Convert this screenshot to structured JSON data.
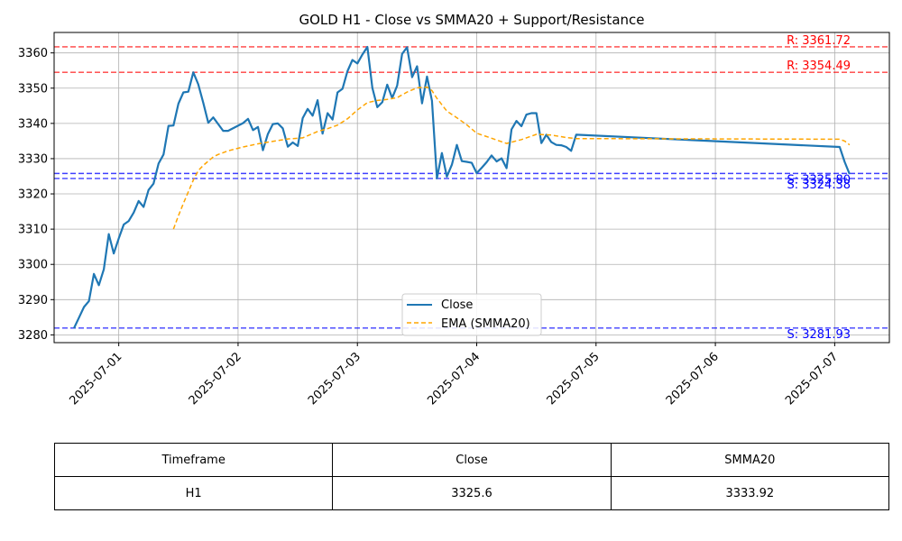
{
  "chart_data": {
    "type": "line",
    "title": "GOLD H1 - Close vs SMMA20 + Support/Resistance",
    "xlabel": "",
    "ylabel": "",
    "x_axis": "datetime",
    "xlim": [
      "2025-06-30T11:00",
      "2025-07-07T11:00"
    ],
    "ylim": [
      3277.8,
      3365.8
    ],
    "y_ticks": [
      3280,
      3290,
      3300,
      3310,
      3320,
      3330,
      3340,
      3350,
      3360
    ],
    "x_ticks": [
      "2025-07-01",
      "2025-07-02",
      "2025-07-03",
      "2025-07-04",
      "2025-07-05",
      "2025-07-06",
      "2025-07-07"
    ],
    "grid": true,
    "legend_position": "lower-center",
    "series": [
      {
        "name": "Close",
        "style": "solid",
        "color": "#1f77b4",
        "points": [
          [
            "2025-06-30T15:00",
            3281.9
          ],
          [
            "2025-06-30T16:00",
            3284.9
          ],
          [
            "2025-06-30T17:00",
            3287.9
          ],
          [
            "2025-06-30T18:00",
            3289.6
          ],
          [
            "2025-06-30T19:00",
            3297.3
          ],
          [
            "2025-06-30T20:00",
            3294.1
          ],
          [
            "2025-06-30T21:00",
            3298.6
          ],
          [
            "2025-06-30T22:00",
            3308.6
          ],
          [
            "2025-06-30T23:00",
            3303.1
          ],
          [
            "2025-07-01T00:00",
            3307.4
          ],
          [
            "2025-07-01T01:00",
            3311.3
          ],
          [
            "2025-07-01T02:00",
            3312.3
          ],
          [
            "2025-07-01T03:00",
            3314.7
          ],
          [
            "2025-07-01T04:00",
            3318.0
          ],
          [
            "2025-07-01T05:00",
            3316.3
          ],
          [
            "2025-07-01T06:00",
            3321.1
          ],
          [
            "2025-07-01T07:00",
            3322.9
          ],
          [
            "2025-07-01T08:00",
            3328.6
          ],
          [
            "2025-07-01T09:00",
            3331.2
          ],
          [
            "2025-07-01T10:00",
            3339.3
          ],
          [
            "2025-07-01T11:00",
            3339.4
          ],
          [
            "2025-07-01T12:00",
            3345.6
          ],
          [
            "2025-07-01T13:00",
            3348.8
          ],
          [
            "2025-07-01T14:00",
            3349.0
          ],
          [
            "2025-07-01T15:00",
            3354.5
          ],
          [
            "2025-07-01T16:00",
            3351.1
          ],
          [
            "2025-07-01T17:00",
            3345.8
          ],
          [
            "2025-07-01T18:00",
            3340.2
          ],
          [
            "2025-07-01T19:00",
            3341.7
          ],
          [
            "2025-07-01T20:00",
            3339.8
          ],
          [
            "2025-07-01T21:00",
            3337.9
          ],
          [
            "2025-07-01T22:00",
            3337.9
          ],
          [
            "2025-07-02T01:00",
            3340.1
          ],
          [
            "2025-07-02T02:00",
            3341.3
          ],
          [
            "2025-07-02T03:00",
            3338.1
          ],
          [
            "2025-07-02T04:00",
            3339.0
          ],
          [
            "2025-07-02T05:00",
            3332.4
          ],
          [
            "2025-07-02T06:00",
            3337.0
          ],
          [
            "2025-07-02T07:00",
            3339.8
          ],
          [
            "2025-07-02T08:00",
            3340.0
          ],
          [
            "2025-07-02T09:00",
            3338.6
          ],
          [
            "2025-07-02T10:00",
            3333.4
          ],
          [
            "2025-07-02T11:00",
            3334.6
          ],
          [
            "2025-07-02T12:00",
            3333.6
          ],
          [
            "2025-07-02T13:00",
            3341.5
          ],
          [
            "2025-07-02T14:00",
            3344.1
          ],
          [
            "2025-07-02T15:00",
            3342.2
          ],
          [
            "2025-07-02T16:00",
            3346.6
          ],
          [
            "2025-07-02T17:00",
            3337.1
          ],
          [
            "2025-07-02T18:00",
            3342.9
          ],
          [
            "2025-07-02T19:00",
            3341.1
          ],
          [
            "2025-07-02T20:00",
            3348.8
          ],
          [
            "2025-07-02T21:00",
            3349.8
          ],
          [
            "2025-07-02T22:00",
            3354.8
          ],
          [
            "2025-07-02T23:00",
            3358.0
          ],
          [
            "2025-07-03T00:00",
            3357.0
          ],
          [
            "2025-07-03T01:00",
            3359.5
          ],
          [
            "2025-07-03T02:00",
            3361.7
          ],
          [
            "2025-07-03T03:00",
            3350.1
          ],
          [
            "2025-07-03T04:00",
            3344.6
          ],
          [
            "2025-07-03T05:00",
            3346.0
          ],
          [
            "2025-07-03T06:00",
            3351.0
          ],
          [
            "2025-07-03T07:00",
            3347.2
          ],
          [
            "2025-07-03T08:00",
            3350.7
          ],
          [
            "2025-07-03T09:00",
            3359.7
          ],
          [
            "2025-07-03T10:00",
            3361.6
          ],
          [
            "2025-07-03T11:00",
            3353.1
          ],
          [
            "2025-07-03T12:00",
            3356.2
          ],
          [
            "2025-07-03T13:00",
            3345.7
          ],
          [
            "2025-07-03T14:00",
            3353.3
          ],
          [
            "2025-07-03T15:00",
            3346.4
          ],
          [
            "2025-07-03T16:00",
            3324.4
          ],
          [
            "2025-07-03T17:00",
            3331.6
          ],
          [
            "2025-07-03T18:00",
            3324.9
          ],
          [
            "2025-07-03T19:00",
            3328.3
          ],
          [
            "2025-07-03T20:00",
            3333.9
          ],
          [
            "2025-07-03T21:00",
            3329.3
          ],
          [
            "2025-07-03T22:00",
            3329.1
          ],
          [
            "2025-07-03T23:00",
            3328.8
          ],
          [
            "2025-07-04T00:00",
            3325.9
          ],
          [
            "2025-07-04T01:00",
            3327.4
          ],
          [
            "2025-07-04T02:00",
            3329.0
          ],
          [
            "2025-07-04T03:00",
            3330.9
          ],
          [
            "2025-07-04T04:00",
            3329.2
          ],
          [
            "2025-07-04T05:00",
            3330.1
          ],
          [
            "2025-07-04T06:00",
            3327.3
          ],
          [
            "2025-07-04T07:00",
            3338.3
          ],
          [
            "2025-07-04T08:00",
            3340.7
          ],
          [
            "2025-07-04T09:00",
            3339.2
          ],
          [
            "2025-07-04T10:00",
            3342.5
          ],
          [
            "2025-07-04T11:00",
            3342.9
          ],
          [
            "2025-07-04T12:00",
            3342.9
          ],
          [
            "2025-07-04T13:00",
            3334.4
          ],
          [
            "2025-07-04T14:00",
            3336.8
          ],
          [
            "2025-07-04T15:00",
            3334.7
          ],
          [
            "2025-07-04T16:00",
            3333.9
          ],
          [
            "2025-07-04T17:00",
            3333.8
          ],
          [
            "2025-07-04T18:00",
            3333.3
          ],
          [
            "2025-07-04T19:00",
            3332.2
          ],
          [
            "2025-07-04T20:00",
            3336.8
          ],
          [
            "2025-07-07T01:00",
            3333.3
          ],
          [
            "2025-07-07T02:00",
            3329.1
          ],
          [
            "2025-07-07T03:00",
            3325.6
          ]
        ]
      },
      {
        "name": "EMA (SMMA20)",
        "style": "dashed",
        "color": "#ffa500",
        "points": [
          [
            "2025-07-01T11:00",
            3310.0
          ],
          [
            "2025-07-01T12:00",
            3313.8
          ],
          [
            "2025-07-01T13:00",
            3317.3
          ],
          [
            "2025-07-01T14:00",
            3320.6
          ],
          [
            "2025-07-01T15:00",
            3323.9
          ],
          [
            "2025-07-01T16:00",
            3326.6
          ],
          [
            "2025-07-01T17:00",
            3328.1
          ],
          [
            "2025-07-01T18:00",
            3329.3
          ],
          [
            "2025-07-01T19:00",
            3330.5
          ],
          [
            "2025-07-01T20:00",
            3331.2
          ],
          [
            "2025-07-01T22:00",
            3332.2
          ],
          [
            "2025-07-02T01:00",
            3333.3
          ],
          [
            "2025-07-02T04:00",
            3334.2
          ],
          [
            "2025-07-02T07:00",
            3334.9
          ],
          [
            "2025-07-02T10:00",
            3335.6
          ],
          [
            "2025-07-02T13:00",
            3335.9
          ],
          [
            "2025-07-02T16:00",
            3337.7
          ],
          [
            "2025-07-02T18:00",
            3338.5
          ],
          [
            "2025-07-02T20:00",
            3339.5
          ],
          [
            "2025-07-02T22:00",
            3341.3
          ],
          [
            "2025-07-03T00:00",
            3343.8
          ],
          [
            "2025-07-03T02:00",
            3345.9
          ],
          [
            "2025-07-03T04:00",
            3346.5
          ],
          [
            "2025-07-03T06:00",
            3346.8
          ],
          [
            "2025-07-03T08:00",
            3347.3
          ],
          [
            "2025-07-03T10:00",
            3348.9
          ],
          [
            "2025-07-03T12:00",
            3350.1
          ],
          [
            "2025-07-03T14:00",
            3350.3
          ],
          [
            "2025-07-03T15:00",
            3349.3
          ],
          [
            "2025-07-03T16:00",
            3347.1
          ],
          [
            "2025-07-03T18:00",
            3343.5
          ],
          [
            "2025-07-03T20:00",
            3341.6
          ],
          [
            "2025-07-03T22:00",
            3339.6
          ],
          [
            "2025-07-04T00:00",
            3337.2
          ],
          [
            "2025-07-04T03:00",
            3335.8
          ],
          [
            "2025-07-04T06:00",
            3334.3
          ],
          [
            "2025-07-04T09:00",
            3335.4
          ],
          [
            "2025-07-04T12:00",
            3336.9
          ],
          [
            "2025-07-04T15:00",
            3336.7
          ],
          [
            "2025-07-04T18:00",
            3336.0
          ],
          [
            "2025-07-04T20:00",
            3335.7
          ],
          [
            "2025-07-07T01:00",
            3335.5
          ],
          [
            "2025-07-07T02:00",
            3335.0
          ],
          [
            "2025-07-07T03:00",
            3333.9
          ]
        ]
      }
    ],
    "levels": [
      {
        "type": "resistance",
        "value": 3361.72,
        "label": "R: 3361.72",
        "color": "#ff0000"
      },
      {
        "type": "resistance",
        "value": 3354.49,
        "label": "R: 3354.49",
        "color": "#ff0000"
      },
      {
        "type": "support",
        "value": 3325.8,
        "label": "S: 3325.80",
        "color": "#0000ff"
      },
      {
        "type": "support",
        "value": 3324.38,
        "label": "S: 3324.38",
        "color": "#0000ff"
      },
      {
        "type": "support",
        "value": 3281.93,
        "label": "S: 3281.93",
        "color": "#0000ff"
      }
    ]
  },
  "table": {
    "headers": [
      "Timeframe",
      "Close",
      "SMMA20"
    ],
    "rows": [
      [
        "H1",
        "3325.6",
        "3333.92"
      ]
    ]
  }
}
